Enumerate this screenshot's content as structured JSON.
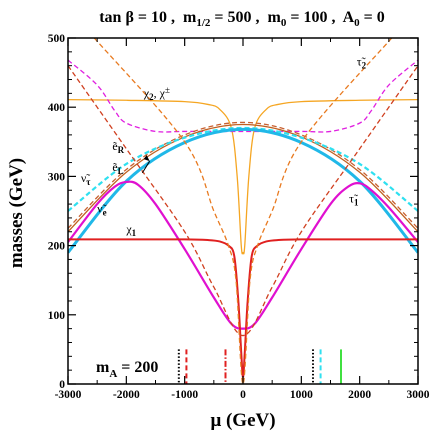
{
  "chart_data": {
    "type": "line",
    "title": "tan β = 10 ,  m1/2 = 500 ,  m0 = 100 , A0 = 0",
    "title_parts": {
      "tanb": "tan β = 10 ,",
      "m12": "m",
      "m12_sub": "1/2",
      "m12_val": " = 500 ,",
      "m0": "m",
      "m0_sub": "0",
      "m0_val": " = 100 ,",
      "a0": "A",
      "a0_sub": "0",
      "a0_val": " = 0"
    },
    "xlabel": "μ (GeV)",
    "ylabel": "masses (GeV)",
    "xlim": [
      -3000,
      3000
    ],
    "ylim": [
      0,
      500
    ],
    "x_ticks": [
      -3000,
      -2000,
      -1000,
      0,
      1000,
      2000,
      3000
    ],
    "y_ticks": [
      0,
      100,
      200,
      300,
      400,
      500
    ],
    "annotation": {
      "main": "m",
      "sub": "A",
      "value": " = 200"
    },
    "series": [
      {
        "name": "χ2, χ±",
        "color": "#f5a623",
        "x": [
          -3000,
          -2000,
          -1000,
          -600,
          -400,
          -200,
          -100,
          -30,
          0,
          30,
          100,
          200,
          400,
          600,
          1000,
          2000,
          3000
        ],
        "y": [
          411,
          410,
          408,
          404,
          397,
          370,
          300,
          200,
          190,
          200,
          300,
          370,
          397,
          404,
          408,
          410,
          411
        ]
      },
      {
        "name": "τ̃2",
        "color": "#e020e0",
        "dash": true,
        "x": [
          -3000,
          -2500,
          -2200,
          -2000,
          -1500,
          -1000,
          0,
          1000,
          1500,
          2000,
          2200,
          2500,
          3000
        ],
        "y": [
          468,
          432,
          395,
          377,
          365,
          365,
          365,
          365,
          365,
          377,
          395,
          432,
          468
        ]
      },
      {
        "name": "ẽR",
        "color": "#c06020",
        "x": [
          -3000,
          -2000,
          -1000,
          0,
          1000,
          2000,
          3000
        ],
        "y": [
          220,
          306,
          357,
          375,
          357,
          306,
          220
        ]
      },
      {
        "name": "ẽL",
        "color": "#c86030",
        "dash": true,
        "x": [
          -3000,
          -2000,
          -1000,
          0,
          1000,
          2000,
          3000
        ],
        "y": [
          225,
          310,
          360,
          378,
          360,
          310,
          225
        ]
      },
      {
        "name": "ν̃τ",
        "color": "#2ee0f0",
        "dash": true,
        "x": [
          -3000,
          -2000,
          -1000,
          0,
          1000,
          2000,
          3000
        ],
        "y": [
          250,
          318,
          356,
          370,
          356,
          318,
          250
        ]
      },
      {
        "name": "ν̃e",
        "color": "#20b8e8",
        "x": [
          -3000,
          -2000,
          -1000,
          0,
          1000,
          2000,
          3000
        ],
        "y": [
          190,
          293,
          349,
          368,
          349,
          293,
          190
        ]
      },
      {
        "name": "τ̃1",
        "color": "#e010d0",
        "x": [
          -3000,
          -2500,
          -2200,
          -2000,
          -1800,
          -1500,
          -1000,
          -500,
          -200,
          0,
          200,
          500,
          1000,
          1500,
          1800,
          2000,
          2200,
          2500,
          3000
        ],
        "y": [
          205,
          260,
          285,
          292,
          288,
          260,
          195,
          125,
          87,
          80,
          87,
          125,
          195,
          260,
          285,
          290,
          280,
          255,
          205
        ]
      },
      {
        "name": "χ1",
        "color": "#e02020",
        "x": [
          -3000,
          -2000,
          -1000,
          -600,
          -400,
          -250,
          -150,
          -80,
          -30,
          0,
          30,
          80,
          150,
          250,
          400,
          600,
          1000,
          2000,
          3000
        ],
        "y": [
          209,
          209,
          209,
          208,
          206,
          200,
          185,
          120,
          45,
          10,
          45,
          120,
          185,
          200,
          206,
          208,
          209,
          209,
          209
        ]
      },
      {
        "name": "",
        "color": "#e87a20",
        "dash": true,
        "x": [
          -2550,
          -1000,
          -500,
          -250,
          -120,
          0,
          120,
          250,
          500,
          1000,
          2550
        ],
        "y": [
          500,
          350,
          250,
          200,
          150,
          0,
          150,
          200,
          250,
          350,
          500
        ]
      },
      {
        "name": "",
        "color": "#d04020",
        "dash": true,
        "x": [
          -3000,
          -2000,
          -1000,
          -500,
          0,
          500,
          1000,
          2000,
          3000
        ],
        "y": [
          460,
          340,
          220,
          140,
          70,
          140,
          220,
          340,
          460
        ]
      }
    ],
    "vertical_markers": [
      {
        "x": -1100,
        "color": "#000000",
        "style": "dotted"
      },
      {
        "x": -970,
        "color": "#e02020",
        "style": "dashed"
      },
      {
        "x": -300,
        "color": "#e02020",
        "style": "dashdot"
      },
      {
        "x": 1200,
        "color": "#000000",
        "style": "dotted"
      },
      {
        "x": 1330,
        "color": "#30e0f0",
        "style": "dashed"
      },
      {
        "x": 1680,
        "color": "#40e040",
        "style": "solid"
      }
    ],
    "curve_labels": [
      {
        "text": "χ",
        "sub": "2",
        "rest": ", χ",
        "sup": "±",
        "x": -1700,
        "y": 415
      },
      {
        "text": "τ̃",
        "sub": "2",
        "x": 1950,
        "y": 460
      },
      {
        "text": "ẽ",
        "sub": "R",
        "x": -2240,
        "y": 338
      },
      {
        "text": "ẽ",
        "sub": "L",
        "x": -2240,
        "y": 308
      },
      {
        "text": "ν̃",
        "sub": "τ",
        "x": -2780,
        "y": 292
      },
      {
        "text": "ν̃",
        "sub": "e",
        "x": -2500,
        "y": 248
      },
      {
        "text": "τ̃",
        "sub": "1",
        "x": 1820,
        "y": 262
      },
      {
        "text": "χ",
        "sub": "1",
        "x": -2000,
        "y": 218
      }
    ]
  }
}
